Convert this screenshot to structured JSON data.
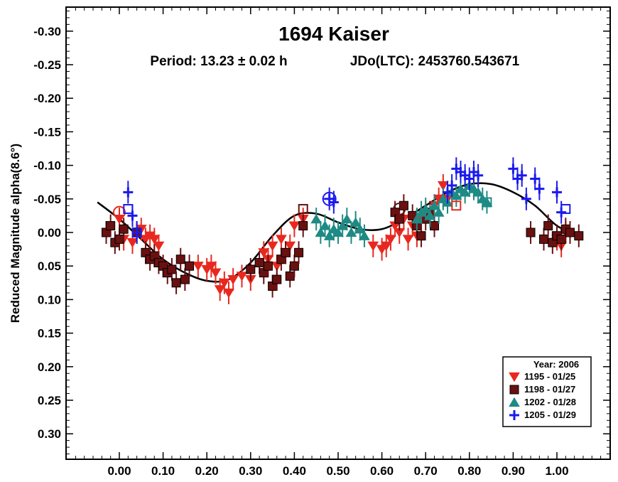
{
  "chart_data": {
    "type": "scatter",
    "title": "1694 Kaiser",
    "subtitle_period": "Period: 13.23 ± 0.02 h",
    "subtitle_epoch": "JDo(LTC): 2453760.543671",
    "xlabel": "",
    "ylabel": "Reduced Magnitude alpha(8.6°)",
    "xlim": [
      -0.12,
      1.12
    ],
    "ylim": [
      -0.335,
      0.345
    ],
    "y_inverted": true,
    "x_ticks": [
      "0.00",
      "0.10",
      "0.20",
      "0.30",
      "0.40",
      "0.50",
      "0.60",
      "0.70",
      "0.80",
      "0.90",
      "1.00"
    ],
    "x_tick_values": [
      0,
      0.1,
      0.2,
      0.3,
      0.4,
      0.5,
      0.6,
      0.7,
      0.8,
      0.9,
      1.0
    ],
    "y_ticks": [
      "-0.30",
      "-0.25",
      "-0.20",
      "-0.15",
      "-0.10",
      "-0.05",
      "0.00",
      "0.05",
      "0.10",
      "0.15",
      "0.20",
      "0.25",
      "0.30"
    ],
    "y_tick_values": [
      -0.3,
      -0.25,
      -0.2,
      -0.15,
      -0.1,
      -0.05,
      0.0,
      0.05,
      0.1,
      0.15,
      0.2,
      0.25,
      0.3
    ],
    "legend": {
      "title": "Year: 2006",
      "placement": "bottom-right",
      "entries": [
        {
          "label": "1195 - 01/25",
          "marker": "triangle-down",
          "color": "#e8281e"
        },
        {
          "label": "1198 - 01/27",
          "marker": "square",
          "color": "#6a1010"
        },
        {
          "label": "1202 - 01/28",
          "marker": "triangle-up",
          "color": "#1f8a84"
        },
        {
          "label": "1205 - 01/29",
          "marker": "plus",
          "color": "#1a1aee"
        }
      ]
    },
    "fit_curve": {
      "color": "#000000",
      "x": [
        -0.05,
        0.0,
        0.05,
        0.1,
        0.15,
        0.2,
        0.25,
        0.3,
        0.35,
        0.4,
        0.45,
        0.5,
        0.55,
        0.6,
        0.65,
        0.7,
        0.75,
        0.8,
        0.85,
        0.9,
        0.95,
        1.0,
        1.05
      ],
      "y": [
        -0.045,
        -0.02,
        0.01,
        0.04,
        0.06,
        0.072,
        0.07,
        0.045,
        0.005,
        -0.025,
        -0.028,
        -0.015,
        -0.005,
        -0.005,
        -0.02,
        -0.04,
        -0.06,
        -0.072,
        -0.072,
        -0.06,
        -0.04,
        -0.01,
        0.005
      ]
    },
    "series": [
      {
        "name": "1195 - 01/25",
        "marker": "triangle-down",
        "color": "#e8281e",
        "x": [
          0.0,
          0.01,
          0.03,
          0.05,
          0.06,
          0.07,
          0.08,
          0.09,
          0.18,
          0.2,
          0.21,
          0.22,
          0.23,
          0.24,
          0.25,
          0.26,
          0.28,
          0.3,
          0.33,
          0.34,
          0.35,
          0.36,
          0.37,
          0.38,
          0.39,
          0.4,
          0.42,
          0.58,
          0.6,
          0.61,
          0.62,
          0.63,
          0.64,
          0.65,
          0.66,
          0.67,
          0.68,
          0.69,
          0.7,
          0.72,
          0.73,
          0.74,
          0.75,
          1.0,
          1.01,
          1.02
        ],
        "y": [
          -0.02,
          0.01,
          0.015,
          -0.005,
          0.01,
          0.005,
          0.01,
          0.02,
          0.05,
          0.055,
          0.05,
          0.06,
          0.085,
          0.075,
          0.09,
          0.07,
          0.065,
          0.07,
          0.03,
          0.04,
          0.02,
          0.05,
          0.01,
          0.03,
          0.02,
          -0.01,
          -0.02,
          0.02,
          0.025,
          0.02,
          0.01,
          -0.01,
          0.0,
          -0.02,
          0.01,
          -0.01,
          0.005,
          -0.02,
          -0.03,
          -0.04,
          -0.05,
          -0.07,
          -0.05,
          0.01,
          0.02,
          0.0
        ]
      },
      {
        "name": "1198 - 01/27",
        "marker": "square",
        "color": "#6a1010",
        "x": [
          -0.03,
          -0.02,
          -0.01,
          0.0,
          0.01,
          0.04,
          0.06,
          0.07,
          0.08,
          0.09,
          0.1,
          0.11,
          0.12,
          0.13,
          0.14,
          0.15,
          0.16,
          0.3,
          0.32,
          0.33,
          0.34,
          0.35,
          0.36,
          0.37,
          0.38,
          0.39,
          0.4,
          0.41,
          0.42,
          0.63,
          0.64,
          0.65,
          0.67,
          0.68,
          0.69,
          0.7,
          0.71,
          0.72,
          0.94,
          0.97,
          0.98,
          0.99,
          1.0,
          1.01,
          1.02,
          1.03,
          1.05
        ],
        "y": [
          0.0,
          -0.01,
          0.015,
          0.01,
          -0.005,
          0.0,
          0.03,
          0.04,
          0.035,
          0.045,
          0.05,
          0.06,
          0.055,
          0.075,
          0.04,
          0.07,
          0.05,
          0.055,
          0.045,
          0.06,
          0.05,
          0.08,
          0.07,
          0.04,
          0.03,
          0.065,
          0.05,
          0.03,
          -0.01,
          -0.03,
          -0.02,
          -0.04,
          -0.025,
          -0.01,
          0.005,
          -0.02,
          -0.03,
          -0.01,
          0.0,
          0.01,
          -0.01,
          0.015,
          0.005,
          0.01,
          -0.005,
          0.0,
          0.005
        ]
      },
      {
        "name": "1202 - 01/28",
        "marker": "triangle-up",
        "color": "#1f8a84",
        "x": [
          0.45,
          0.46,
          0.47,
          0.48,
          0.49,
          0.5,
          0.51,
          0.52,
          0.53,
          0.54,
          0.55,
          0.56,
          0.68,
          0.69,
          0.7,
          0.71,
          0.72,
          0.73,
          0.74,
          0.75,
          0.76,
          0.77,
          0.78,
          0.79,
          0.8,
          0.81,
          0.82,
          0.83,
          0.84
        ],
        "y": [
          -0.02,
          0.0,
          -0.01,
          0.005,
          -0.005,
          0.0,
          -0.01,
          -0.02,
          0.0,
          -0.015,
          -0.005,
          0.005,
          -0.02,
          -0.03,
          -0.035,
          -0.025,
          -0.04,
          -0.03,
          -0.05,
          -0.045,
          -0.06,
          -0.055,
          -0.065,
          -0.06,
          -0.07,
          -0.065,
          -0.06,
          -0.05,
          -0.045
        ]
      },
      {
        "name": "1205 - 01/29",
        "marker": "plus",
        "color": "#1a1aee",
        "x": [
          0.02,
          0.03,
          0.04,
          0.48,
          0.49,
          0.75,
          0.76,
          0.77,
          0.78,
          0.79,
          0.8,
          0.81,
          0.82,
          0.9,
          0.91,
          0.92,
          0.93,
          0.95,
          0.96,
          1.0,
          1.01
        ],
        "y": [
          -0.06,
          -0.025,
          0.0,
          -0.05,
          -0.045,
          -0.06,
          -0.07,
          -0.095,
          -0.09,
          -0.085,
          -0.08,
          -0.09,
          -0.085,
          -0.095,
          -0.08,
          -0.085,
          -0.05,
          -0.08,
          -0.065,
          -0.06,
          -0.03
        ]
      }
    ],
    "open_markers": [
      {
        "marker": "circle",
        "color": "#e8281e",
        "x": 0.0,
        "y": -0.03
      },
      {
        "marker": "square",
        "color": "#1a1aee",
        "x": 0.02,
        "y": -0.035
      },
      {
        "marker": "square",
        "color": "#1a1aee",
        "x": 0.04,
        "y": 0.0
      },
      {
        "marker": "circle-plus",
        "color": "#1a1aee",
        "x": 0.48,
        "y": -0.05
      },
      {
        "marker": "square",
        "color": "#6a1010",
        "x": 0.42,
        "y": -0.035
      },
      {
        "marker": "circle",
        "color": "#6a1010",
        "x": 0.64,
        "y": -0.035
      },
      {
        "marker": "square",
        "color": "#e8281e",
        "x": 0.77,
        "y": -0.04
      },
      {
        "marker": "square",
        "color": "#1f8a84",
        "x": 0.84,
        "y": -0.045
      },
      {
        "marker": "square",
        "color": "#1a1aee",
        "x": 1.02,
        "y": -0.035
      }
    ]
  }
}
